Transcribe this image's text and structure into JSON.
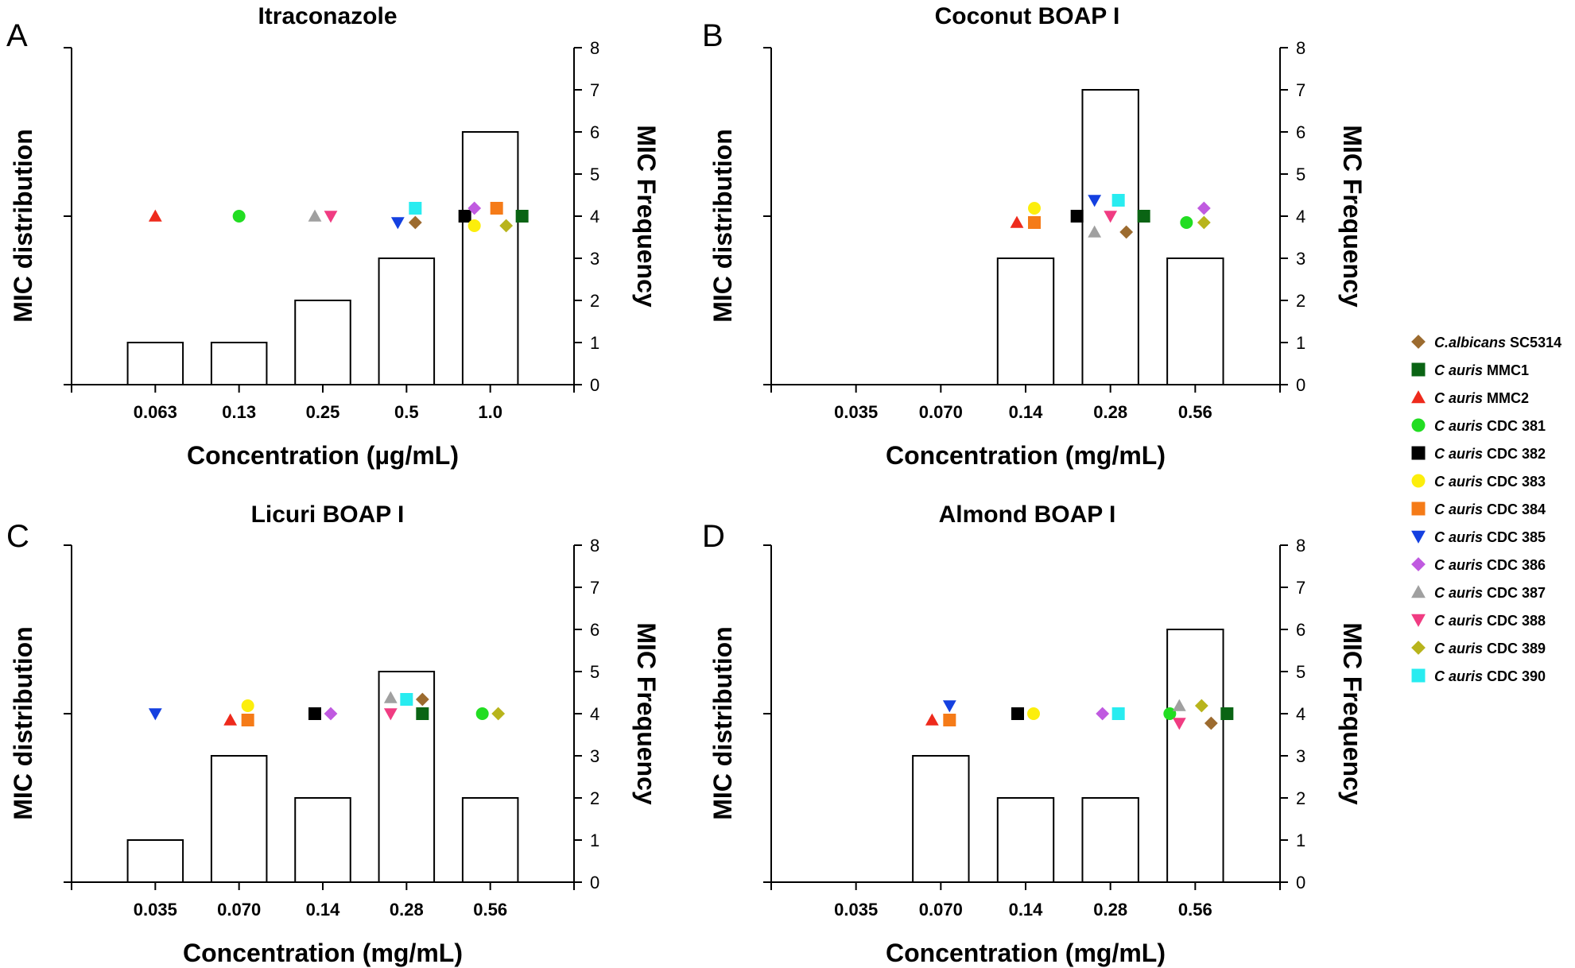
{
  "legend": {
    "items": [
      {
        "id": "sc5314",
        "italic": "C.albicans",
        "rest": " SC5314",
        "shape": "diamond",
        "color": "#9c6b2f"
      },
      {
        "id": "mmc1",
        "italic": "C auris",
        "rest": " MMC1",
        "shape": "square",
        "color": "#0a6414"
      },
      {
        "id": "mmc2",
        "italic": "C auris",
        "rest": " MMC2",
        "shape": "triangle",
        "color": "#ee2a1c"
      },
      {
        "id": "cdc381",
        "italic": "C auris",
        "rest": " CDC 381",
        "shape": "circle",
        "color": "#22dd22"
      },
      {
        "id": "cdc382",
        "italic": "C auris",
        "rest": " CDC 382",
        "shape": "square",
        "color": "#000000"
      },
      {
        "id": "cdc383",
        "italic": "C auris",
        "rest": " CDC 383",
        "shape": "circle",
        "color": "#fcee0c"
      },
      {
        "id": "cdc384",
        "italic": "C auris",
        "rest": " CDC 384",
        "shape": "square",
        "color": "#f57b18"
      },
      {
        "id": "cdc385",
        "italic": "C auris",
        "rest": " CDC 385",
        "shape": "triangle-down",
        "color": "#1440e0"
      },
      {
        "id": "cdc386",
        "italic": "C auris",
        "rest": " CDC 386",
        "shape": "diamond",
        "color": "#c05ae0"
      },
      {
        "id": "cdc387",
        "italic": "C auris",
        "rest": " CDC 387",
        "shape": "triangle",
        "color": "#a0a0a0"
      },
      {
        "id": "cdc388",
        "italic": "C auris",
        "rest": " CDC 388",
        "shape": "triangle-down",
        "color": "#f03c82"
      },
      {
        "id": "cdc389",
        "italic": "C auris",
        "rest": " CDC 389",
        "shape": "diamond",
        "color": "#b8b41c"
      },
      {
        "id": "cdc390",
        "italic": "C auris",
        "rest": " CDC 390",
        "shape": "square",
        "color": "#28ecf0"
      }
    ]
  },
  "chart_data": [
    {
      "type": "bar",
      "panel": "A",
      "title": "Itraconazole",
      "xlabel": "Concentration (µg/mL)",
      "ylabel_left": "MIC distribution",
      "ylabel_right": "MIC Frequency",
      "ylim": [
        0,
        8
      ],
      "yticks": [
        "0",
        "1",
        "2",
        "3",
        "4",
        "5",
        "6",
        "7",
        "8"
      ],
      "categories": [
        "0.063",
        "0.13",
        "0.25",
        "0.5",
        "1.0"
      ],
      "values": [
        1,
        1,
        2,
        3,
        6
      ],
      "strains": {
        "0.063": [
          "mmc2"
        ],
        "0.13": [
          "cdc381"
        ],
        "0.25": [
          "cdc387",
          "cdc388"
        ],
        "0.5": [
          "cdc385",
          "cdc390",
          "sc5314"
        ],
        "1.0": [
          "cdc382",
          "cdc383",
          "cdc386",
          "cdc384",
          "cdc389",
          "mmc1"
        ]
      }
    },
    {
      "type": "bar",
      "panel": "B",
      "title": "Coconut BOAP I",
      "xlabel": "Concentration (mg/mL)",
      "ylabel_left": "MIC distribution",
      "ylabel_right": "MIC Frequency",
      "ylim": [
        0,
        8
      ],
      "yticks": [
        "0",
        "1",
        "2",
        "3",
        "4",
        "5",
        "6",
        "7",
        "8"
      ],
      "categories": [
        "0.035",
        "0.070",
        "0.14",
        "0.28",
        "0.56"
      ],
      "values": [
        0,
        0,
        3,
        7,
        3
      ],
      "strains": {
        "0.035": [],
        "0.070": [],
        "0.14": [
          "mmc2",
          "cdc383",
          "cdc384"
        ],
        "0.28": [
          "cdc382",
          "cdc387",
          "cdc385",
          "cdc388",
          "cdc390",
          "sc5314",
          "mmc1"
        ],
        "0.56": [
          "cdc381",
          "cdc386",
          "cdc389"
        ]
      }
    },
    {
      "type": "bar",
      "panel": "C",
      "title": "Licuri BOAP I",
      "xlabel": "Concentration (mg/mL)",
      "ylabel_left": "MIC distribution",
      "ylabel_right": "MIC Frequency",
      "ylim": [
        0,
        8
      ],
      "yticks": [
        "0",
        "1",
        "2",
        "3",
        "4",
        "5",
        "6",
        "7",
        "8"
      ],
      "categories": [
        "0.035",
        "0.070",
        "0.14",
        "0.28",
        "0.56"
      ],
      "values": [
        1,
        3,
        2,
        5,
        2
      ],
      "strains": {
        "0.035": [
          "cdc385"
        ],
        "0.070": [
          "mmc2",
          "cdc383",
          "cdc384"
        ],
        "0.14": [
          "cdc382",
          "cdc386"
        ],
        "0.28": [
          "cdc388",
          "cdc387",
          "cdc390",
          "sc5314",
          "mmc1"
        ],
        "0.56": [
          "cdc381",
          "cdc389"
        ]
      }
    },
    {
      "type": "bar",
      "panel": "D",
      "title": "Almond BOAP I",
      "xlabel": "Concentration (mg/mL)",
      "ylabel_left": "MIC distribution",
      "ylabel_right": "MIC Frequency",
      "ylim": [
        0,
        8
      ],
      "yticks": [
        "0",
        "1",
        "2",
        "3",
        "4",
        "5",
        "6",
        "7",
        "8"
      ],
      "categories": [
        "0.035",
        "0.070",
        "0.14",
        "0.28",
        "0.56"
      ],
      "values": [
        0,
        3,
        2,
        2,
        6
      ],
      "strains": {
        "0.035": [],
        "0.070": [
          "mmc2",
          "cdc385",
          "cdc384"
        ],
        "0.14": [
          "cdc382",
          "cdc383"
        ],
        "0.28": [
          "cdc386",
          "cdc390"
        ],
        "0.56": [
          "cdc381",
          "cdc388",
          "cdc387",
          "cdc389",
          "sc5314",
          "mmc1"
        ]
      }
    }
  ]
}
